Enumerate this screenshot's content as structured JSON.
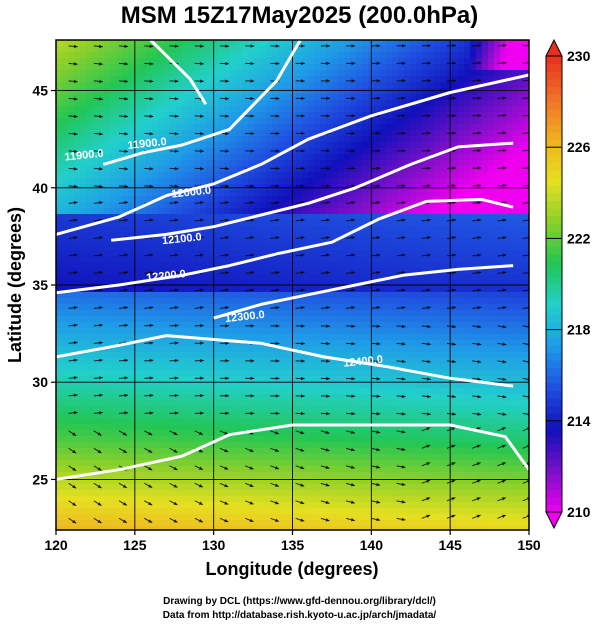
{
  "title": "MSM 15Z17May2025 (200.0hPa)",
  "footer": {
    "line1": "Drawing by DCL (https://www.gfd-dennou.org/library/dcl/)",
    "line2": "Data from http://database.rish.kyoto-u.ac.jp/arch/jmadata/"
  },
  "chart_data": {
    "type": "heatmap",
    "title": "MSM 15Z17May2025 (200.0hPa)",
    "xlabel": "Longitude (degrees)",
    "ylabel": "Latitude  (degrees)",
    "xlim": [
      120,
      150
    ],
    "ylim": [
      22.4,
      47.6
    ],
    "x_ticks": [
      120,
      125,
      130,
      135,
      140,
      145,
      150
    ],
    "y_ticks": [
      25,
      30,
      35,
      40,
      45
    ],
    "grid": true,
    "shading": "temperature (color scale)",
    "colorbar": {
      "min": 210,
      "max": 230,
      "ticks": [
        210,
        214,
        218,
        222,
        226,
        230
      ],
      "stops": [
        "#ee00ee",
        "#7a10c8",
        "#1010bb",
        "#1f4fe0",
        "#1f9be8",
        "#22d0cc",
        "#22c655",
        "#8ad02a",
        "#e6e020",
        "#f0b020",
        "#f07028",
        "#e83020"
      ]
    },
    "contours": {
      "variable": "geopotential height",
      "labels": [
        "11900.0",
        "11900.0",
        "12000.0",
        "12100.0",
        "12200.0",
        "12300.0",
        "12400.0"
      ],
      "lines": [
        {
          "level": 11800,
          "points": [
            [
              126.0,
              47.6
            ],
            [
              128.5,
              45.6
            ],
            [
              129.5,
              44.3
            ]
          ]
        },
        {
          "level": 11900,
          "points": [
            [
              123.0,
              41.2
            ],
            [
              125.5,
              41.8
            ],
            [
              128.0,
              42.2
            ],
            [
              131.0,
              43.0
            ],
            [
              134.0,
              45.5
            ],
            [
              135.5,
              47.6
            ]
          ]
        },
        {
          "level": 12000,
          "points": [
            [
              120.0,
              37.6
            ],
            [
              124.0,
              38.5
            ],
            [
              127.0,
              39.6
            ],
            [
              130.0,
              40.2
            ],
            [
              133.0,
              41.2
            ],
            [
              136.0,
              42.5
            ],
            [
              140.0,
              43.7
            ],
            [
              145.0,
              44.9
            ],
            [
              150.0,
              45.8
            ]
          ]
        },
        {
          "level": 12100,
          "points": [
            [
              123.5,
              37.3
            ],
            [
              127.0,
              37.6
            ],
            [
              130.0,
              38.0
            ],
            [
              133.0,
              38.6
            ],
            [
              136.0,
              39.2
            ],
            [
              139.0,
              40.0
            ],
            [
              142.5,
              41.2
            ],
            [
              145.5,
              42.1
            ],
            [
              149.0,
              42.3
            ]
          ]
        },
        {
          "level": 12200,
          "points": [
            [
              120.0,
              34.6
            ],
            [
              124.0,
              35.0
            ],
            [
              128.0,
              35.5
            ],
            [
              131.0,
              36.0
            ],
            [
              134.0,
              36.6
            ],
            [
              137.5,
              37.2
            ],
            [
              140.5,
              38.4
            ],
            [
              143.5,
              39.3
            ],
            [
              147.0,
              39.4
            ],
            [
              149.0,
              39.0
            ]
          ]
        },
        {
          "level": 12300,
          "points": [
            [
              130.0,
              33.3
            ],
            [
              133.0,
              34.0
            ],
            [
              136.0,
              34.5
            ],
            [
              139.0,
              35.0
            ],
            [
              142.0,
              35.5
            ],
            [
              145.5,
              35.8
            ],
            [
              149.0,
              36.0
            ]
          ]
        },
        {
          "level": 12400,
          "points": [
            [
              120.0,
              31.3
            ],
            [
              124.0,
              31.9
            ],
            [
              127.0,
              32.4
            ],
            [
              133.0,
              32.0
            ],
            [
              137.0,
              31.3
            ],
            [
              141.0,
              30.8
            ],
            [
              145.0,
              30.2
            ],
            [
              149.0,
              29.8
            ]
          ]
        },
        {
          "level": 12500,
          "points": [
            [
              120.0,
              25.0
            ],
            [
              124.0,
              25.5
            ],
            [
              128.0,
              26.2
            ],
            [
              131.0,
              27.3
            ],
            [
              135.0,
              27.8
            ],
            [
              140.0,
              27.8
            ],
            [
              145.0,
              27.8
            ],
            [
              148.5,
              27.2
            ],
            [
              150.0,
              25.5
            ]
          ]
        }
      ]
    },
    "vectors": "wind streamlines (arrows), predominantly westerly; anticyclonic curvature over southern domain"
  }
}
